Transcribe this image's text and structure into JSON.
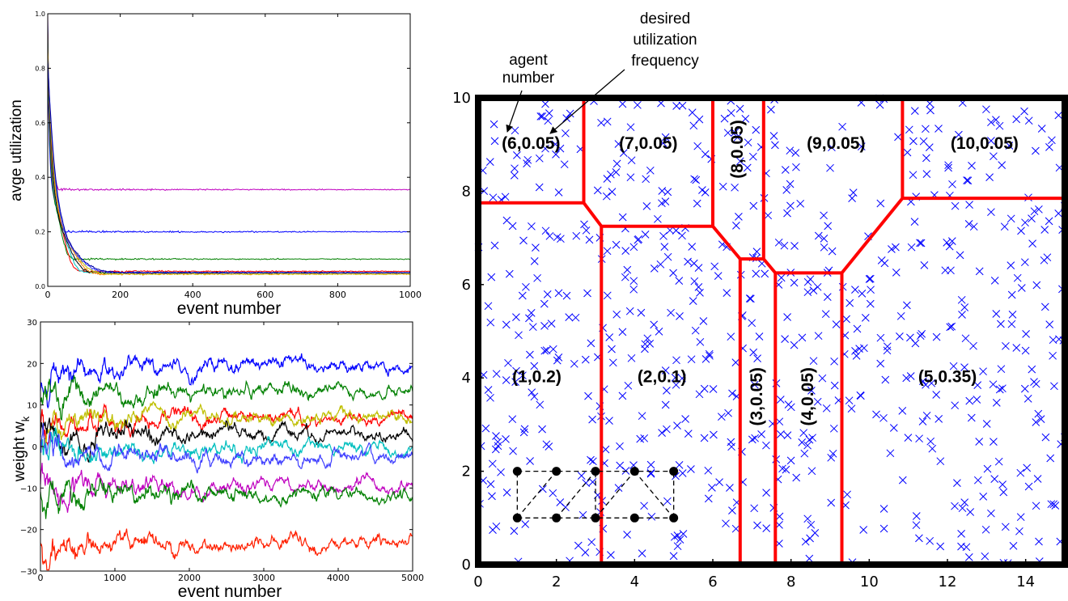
{
  "chart_data": [
    {
      "type": "line",
      "panel": "top-left",
      "title": "",
      "xlabel": "event number",
      "ylabel": "avge utilization",
      "xlim": [
        0,
        1000
      ],
      "ylim": [
        0.0,
        1.0
      ],
      "xticks": [
        0,
        200,
        400,
        600,
        800,
        1000
      ],
      "yticks": [
        0.0,
        0.2,
        0.4,
        0.6,
        0.8,
        1.0
      ],
      "xtick_labels": [
        "0",
        "200",
        "400",
        "600",
        "800",
        "1000"
      ],
      "ytick_labels": [
        "0.0",
        "0.2",
        "0.4",
        "0.6",
        "0.8",
        "1.0"
      ],
      "grid": false,
      "series": [
        {
          "color": "#bf00bf",
          "peak": 0.47,
          "final": 0.355
        },
        {
          "color": "#0000ff",
          "peak": 0.3,
          "final": 0.2
        },
        {
          "color": "#008000",
          "peak": 0.25,
          "final": 0.1
        },
        {
          "color": "#ff0000",
          "peak": 0.22,
          "final": 0.055
        },
        {
          "color": "#00bfbf",
          "peak": 0.18,
          "final": 0.05
        },
        {
          "color": "#000000",
          "peak": 0.15,
          "final": 0.05
        },
        {
          "color": "#ff8000",
          "peak": 0.14,
          "final": 0.045
        },
        {
          "color": "#bfbf00",
          "peak": 0.12,
          "final": 0.045
        },
        {
          "color": "#3f3fff",
          "peak": 0.1,
          "final": 0.05
        },
        {
          "color": "#0000aa",
          "peak": 0.09,
          "final": 0.05
        }
      ]
    },
    {
      "type": "line",
      "panel": "bottom-left",
      "title": "",
      "xlabel": "event number",
      "ylabel": "weight  w",
      "ylabel_subscript": "k",
      "xlim": [
        0,
        5000
      ],
      "ylim": [
        -30,
        30
      ],
      "xticks": [
        0,
        1000,
        2000,
        3000,
        4000,
        5000
      ],
      "yticks": [
        -30,
        -20,
        -10,
        0,
        10,
        20,
        30
      ],
      "xtick_labels": [
        "0",
        "1000",
        "2000",
        "3000",
        "4000",
        "5000"
      ],
      "ytick_labels": [
        "−30",
        "−20",
        "−10",
        "0",
        "10",
        "20",
        "30"
      ],
      "grid": false,
      "series": [
        {
          "color": "#0000ff",
          "start": 15,
          "final": 19.5
        },
        {
          "color": "#008000",
          "start": 12,
          "final": 13.5
        },
        {
          "color": "#ff0000",
          "start": 6,
          "final": 7
        },
        {
          "color": "#bfbf00",
          "start": 5,
          "final": 6.5
        },
        {
          "color": "#000000",
          "start": 3,
          "final": 3
        },
        {
          "color": "#00bfbf",
          "start": -1,
          "final": -0.3
        },
        {
          "color": "#3f3fff",
          "start": -3,
          "final": -2.5
        },
        {
          "color": "#bf00bf",
          "start": -9,
          "final": -9.5
        },
        {
          "color": "#008000",
          "start": -11,
          "final": -11.5
        },
        {
          "color": "#ff2000",
          "start": -26,
          "final": -23.5
        }
      ]
    },
    {
      "type": "scatter",
      "panel": "right",
      "title": "",
      "xlabel": "",
      "ylabel": "",
      "xlim": [
        0,
        15
      ],
      "ylim": [
        0,
        10
      ],
      "xticks": [
        0,
        2,
        4,
        6,
        8,
        10,
        12,
        14
      ],
      "yticks": [
        0,
        2,
        4,
        6,
        8,
        10
      ],
      "xtick_labels": [
        "0",
        "2",
        "4",
        "6",
        "8",
        "10",
        "12",
        "14"
      ],
      "ytick_labels": [
        "0",
        "2",
        "4",
        "6",
        "8",
        "10"
      ],
      "grid": false,
      "marker": "x",
      "marker_color": "#0000ff",
      "point_count": 700,
      "region_line_color": "#ff0000",
      "region_boundaries": [
        [
          [
            0,
            7.75
          ],
          [
            2.7,
            7.75
          ],
          [
            3.15,
            7.25
          ],
          [
            6.0,
            7.25
          ],
          [
            6.7,
            6.55
          ],
          [
            7.3,
            6.55
          ],
          [
            7.6,
            6.25
          ],
          [
            9.3,
            6.25
          ],
          [
            10.85,
            7.85
          ],
          [
            15,
            7.85
          ]
        ],
        [
          [
            2.7,
            10
          ],
          [
            2.7,
            7.75
          ]
        ],
        [
          [
            6.0,
            10
          ],
          [
            6.0,
            7.25
          ]
        ],
        [
          [
            7.3,
            10
          ],
          [
            7.3,
            6.55
          ]
        ],
        [
          [
            10.85,
            10
          ],
          [
            10.85,
            7.85
          ]
        ],
        [
          [
            3.15,
            7.25
          ],
          [
            3.15,
            0
          ]
        ],
        [
          [
            6.7,
            6.55
          ],
          [
            6.7,
            0
          ]
        ],
        [
          [
            7.6,
            6.25
          ],
          [
            7.6,
            0
          ]
        ],
        [
          [
            9.3,
            6.25
          ],
          [
            9.3,
            0
          ]
        ]
      ],
      "regions": [
        {
          "label": "(1,0.2)",
          "x": 1.5,
          "y": 4.0,
          "rotated": false
        },
        {
          "label": "(2,0.1)",
          "x": 4.7,
          "y": 4.0,
          "rotated": false
        },
        {
          "label": "(3,0.05)",
          "x": 7.15,
          "y": 3.6,
          "rotated": true
        },
        {
          "label": "(4,0.05)",
          "x": 8.45,
          "y": 3.6,
          "rotated": true
        },
        {
          "label": "(5,0.35)",
          "x": 12.0,
          "y": 4.0,
          "rotated": false
        },
        {
          "label": "(6,0.05)",
          "x": 1.35,
          "y": 9.0,
          "rotated": false
        },
        {
          "label": "(7,0.05)",
          "x": 4.35,
          "y": 9.0,
          "rotated": false
        },
        {
          "label": "(8,0.05)",
          "x": 6.65,
          "y": 8.9,
          "rotated": true
        },
        {
          "label": "(9,0.05)",
          "x": 9.15,
          "y": 9.0,
          "rotated": false
        },
        {
          "label": "(10,0.05)",
          "x": 12.95,
          "y": 9.0,
          "rotated": false
        }
      ],
      "agent_nodes": [
        [
          1,
          1
        ],
        [
          2,
          1
        ],
        [
          3,
          1
        ],
        [
          4,
          1
        ],
        [
          5,
          1
        ],
        [
          1,
          2
        ],
        [
          2,
          2
        ],
        [
          3,
          2
        ],
        [
          4,
          2
        ],
        [
          5,
          2
        ]
      ],
      "agent_edges_dashed": [
        [
          [
            1,
            1
          ],
          [
            5,
            1
          ]
        ],
        [
          [
            1,
            2
          ],
          [
            5,
            2
          ]
        ],
        [
          [
            1,
            1
          ],
          [
            1,
            2
          ]
        ],
        [
          [
            3,
            1
          ],
          [
            3,
            2
          ]
        ],
        [
          [
            5,
            1
          ],
          [
            5,
            2
          ]
        ],
        [
          [
            1,
            1
          ],
          [
            2,
            2
          ]
        ],
        [
          [
            2,
            1
          ],
          [
            3,
            2
          ]
        ],
        [
          [
            3,
            1
          ],
          [
            4,
            2
          ]
        ],
        [
          [
            4,
            2
          ],
          [
            5,
            1
          ]
        ]
      ],
      "annotations": [
        {
          "text_lines": [
            "agent",
            "number"
          ],
          "target_region": "(6,0.05)",
          "target_part": "agent"
        },
        {
          "text_lines": [
            "desired",
            "utilization",
            "frequency"
          ],
          "target_region": "(6,0.05)",
          "target_part": "frequency"
        }
      ]
    }
  ]
}
